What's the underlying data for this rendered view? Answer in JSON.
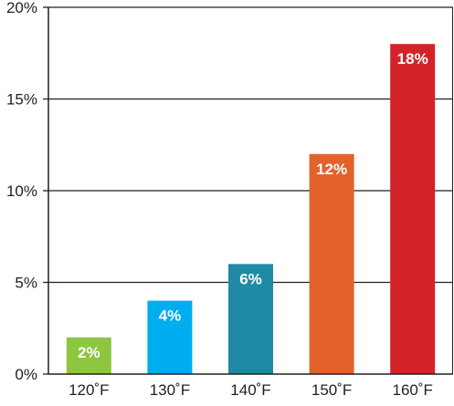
{
  "chart_data": {
    "type": "bar",
    "title": "",
    "xlabel": "",
    "ylabel": "",
    "categories": [
      "120˚F",
      "130˚F",
      "140˚F",
      "150˚F",
      "160˚F"
    ],
    "values": [
      2,
      4,
      6,
      12,
      18
    ],
    "data_labels": [
      "2%",
      "4%",
      "6%",
      "12%",
      "18%"
    ],
    "colors": [
      "#8dc63f",
      "#00aeef",
      "#1f8aa3",
      "#e3622a",
      "#d2232a"
    ],
    "ylim": [
      0,
      20
    ],
    "yticks": [
      0,
      5,
      10,
      15,
      20
    ],
    "ytick_labels": [
      "0%",
      "5%",
      "10%",
      "15%",
      "20%"
    ],
    "grid": true,
    "legend": "none"
  }
}
